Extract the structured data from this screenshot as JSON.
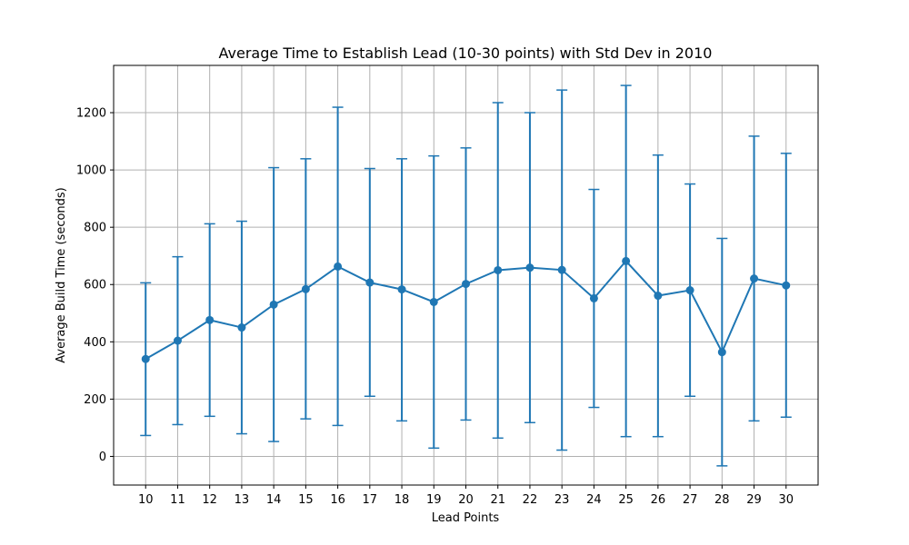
{
  "chart_data": {
    "type": "line",
    "title": "Average Time to Establish Lead (10-30 points) with Std Dev in 2010",
    "xlabel": "Lead Points",
    "ylabel": "Average Build Time (seconds)",
    "x": [
      10,
      11,
      12,
      13,
      14,
      15,
      16,
      17,
      18,
      19,
      20,
      21,
      22,
      23,
      24,
      25,
      26,
      27,
      28,
      29,
      30
    ],
    "y": [
      340,
      404,
      476,
      450,
      530,
      584,
      663,
      607,
      583,
      539,
      602,
      650,
      659,
      651,
      552,
      682,
      561,
      580,
      364,
      621,
      597
    ],
    "error_low": [
      73,
      111,
      140,
      79,
      52,
      131,
      108,
      210,
      124,
      29,
      127,
      64,
      118,
      22,
      171,
      69,
      69,
      210,
      -33,
      124,
      137
    ],
    "error_high": [
      606,
      697,
      812,
      821,
      1008,
      1039,
      1219,
      1005,
      1039,
      1049,
      1077,
      1235,
      1200,
      1279,
      932,
      1295,
      1052,
      951,
      761,
      1118,
      1058
    ],
    "y_ticks": [
      0,
      200,
      400,
      600,
      800,
      1000,
      1200
    ],
    "xlim": [
      9,
      31
    ],
    "ylim": [
      -100,
      1365
    ],
    "grid": true,
    "color": "#1f77b4"
  }
}
